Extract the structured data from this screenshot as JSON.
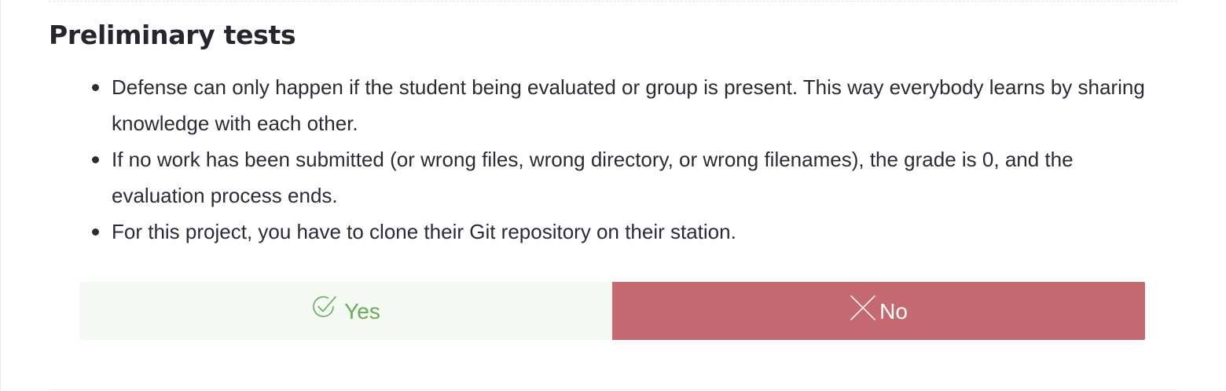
{
  "section": {
    "title": "Preliminary tests",
    "items": [
      "Defense can only happen if the student being evaluated or group is present. This way everybody learns by sharing knowledge with each other.",
      "If no work has been submitted (or wrong files, wrong directory, or wrong filenames), the grade is 0, and the evaluation process ends.",
      "For this project, you have to clone their Git repository on their station."
    ]
  },
  "answers": {
    "yes": {
      "label": "Yes",
      "icon": "check-circle-icon",
      "color": "#6aaa5c",
      "background": "#f5f9f4"
    },
    "no": {
      "label": "No",
      "icon": "close-icon",
      "color": "#ffffff",
      "background": "#c66a72"
    },
    "selected": "no"
  }
}
